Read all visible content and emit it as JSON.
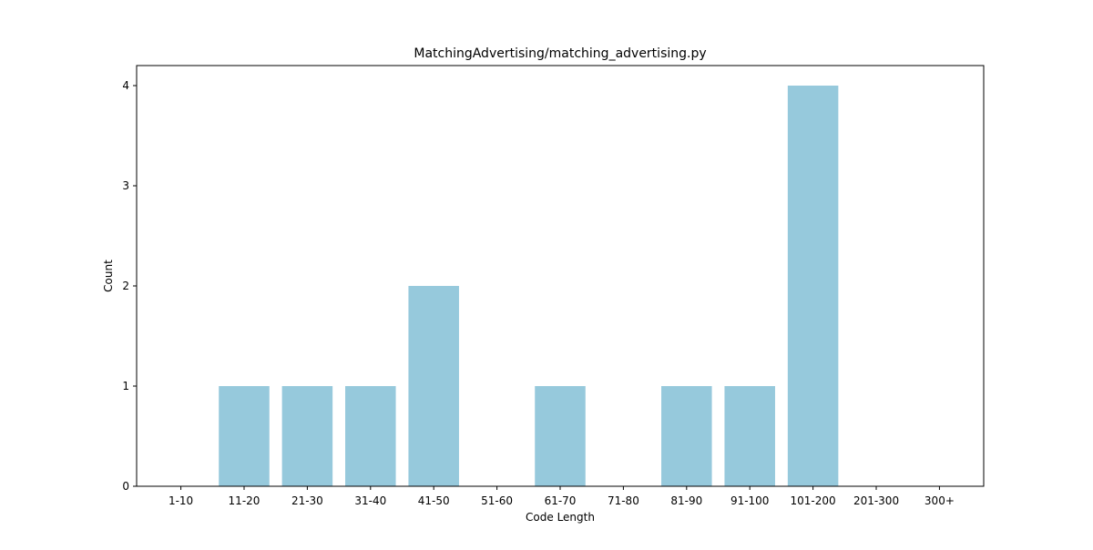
{
  "chart_data": {
    "type": "bar",
    "title": "MatchingAdvertising/matching_advertising.py",
    "xlabel": "Code Length",
    "ylabel": "Count",
    "categories": [
      "1-10",
      "11-20",
      "21-30",
      "31-40",
      "41-50",
      "51-60",
      "61-70",
      "71-80",
      "81-90",
      "91-100",
      "101-200",
      "201-300",
      "300+"
    ],
    "values": [
      0,
      1,
      1,
      1,
      2,
      0,
      1,
      0,
      1,
      1,
      4,
      0,
      0
    ],
    "ylim": [
      0,
      4.2
    ],
    "yticks": [
      "0",
      "1",
      "2",
      "3",
      "4"
    ],
    "bar_color": "#96c9dc",
    "grid": false,
    "legend": "none"
  }
}
